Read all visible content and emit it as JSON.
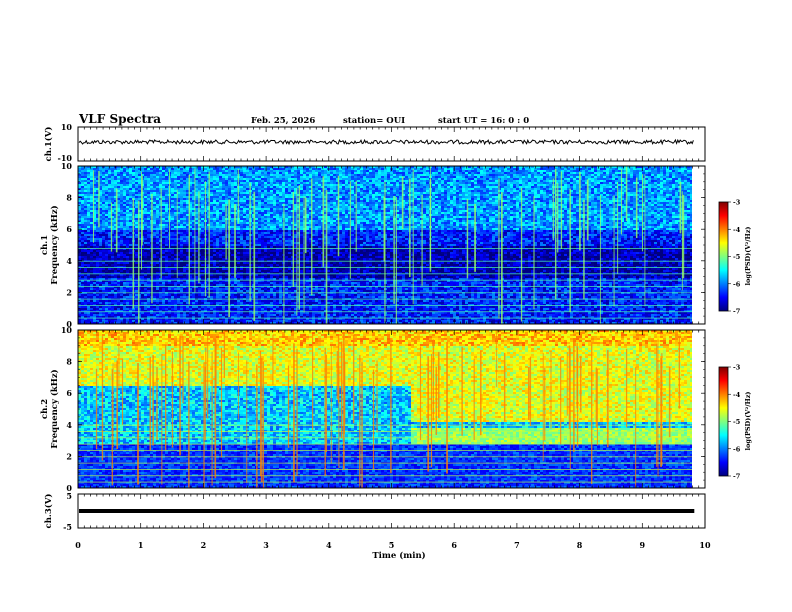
{
  "header": {
    "title": "VLF Spectra",
    "date": "Feb. 25, 2026",
    "station": "station= OUI",
    "start": "start  UT =   16: 0  : 0"
  },
  "colors": {
    "background": "#ffffff",
    "axis": "#000000",
    "colormap": [
      "#00007f",
      "#0000ff",
      "#007fff",
      "#00ffff",
      "#7fff7f",
      "#ffff00",
      "#ff7f00",
      "#ff0000",
      "#7f0000"
    ]
  },
  "chart_data": [
    {
      "type": "line",
      "id": "ch1v",
      "ylabel": "ch.1(V)",
      "ylim": [
        -10,
        10
      ],
      "yticks": [
        "10",
        "-10"
      ],
      "series": [
        {
          "values": {
            "x": [
              0,
              9.83
            ],
            "y": [
              0,
              0
            ]
          },
          "style": "noisy trace"
        }
      ]
    },
    {
      "type": "heatmap",
      "id": "ch1spec",
      "ylabel": "ch.1\nFrequency (kHz)",
      "ylim": [
        0,
        10
      ],
      "xlim": [
        0,
        9.83
      ],
      "yticks": [
        "0",
        "2",
        "4",
        "6",
        "8",
        "10"
      ],
      "colorbar": {
        "label": "log(PSD)(V²/Hz)",
        "range": [
          -7,
          -3
        ],
        "ticks": [
          "-3",
          "-4",
          "-5",
          "-6",
          "-7"
        ]
      },
      "features": {
        "background_level": -6.2,
        "tonal_lines_khz": [
          0.4,
          0.8,
          1.2,
          1.6,
          2.0,
          2.4,
          2.8,
          3.2,
          3.6,
          4.0,
          4.8
        ]
      }
    },
    {
      "type": "heatmap",
      "id": "ch2spec",
      "ylabel": "ch.2\nFrequency (kHz)",
      "ylim": [
        0,
        10
      ],
      "xlim": [
        0,
        9.83
      ],
      "yticks": [
        "0",
        "2",
        "4",
        "6",
        "8",
        "10"
      ],
      "colorbar": {
        "label": "log(PSD)(V²/Hz)",
        "range": [
          -7,
          -3
        ],
        "ticks": [
          "-3",
          "-4",
          "-5",
          "-6",
          "-7"
        ]
      },
      "features": {
        "background_level": -5.0,
        "band_shift_min": 5.3,
        "tonal_lines_khz": [
          0.4,
          0.8,
          1.2,
          1.6,
          2.0,
          2.4,
          2.8,
          3.2,
          3.6,
          4.0
        ]
      }
    },
    {
      "type": "line",
      "id": "ch3v",
      "ylabel": "ch.3(V)",
      "ylim": [
        -5,
        5
      ],
      "yticks": [
        "5",
        "-5"
      ],
      "series": [
        {
          "values": {
            "x": [
              0,
              9.83
            ],
            "y": [
              0,
              0
            ]
          },
          "style": "thick flat trace"
        }
      ]
    }
  ],
  "xaxis": {
    "label": "Time (min)",
    "xlim": [
      0,
      10
    ],
    "ticks": [
      "0",
      "1",
      "2",
      "3",
      "4",
      "5",
      "6",
      "7",
      "8",
      "9",
      "10"
    ]
  }
}
